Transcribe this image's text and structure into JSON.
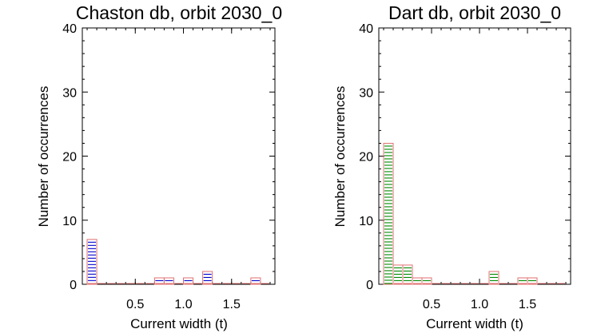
{
  "chart_data": [
    {
      "type": "bar",
      "title": "Chaston db, orbit 2030_0",
      "xlabel": "Current width (t)",
      "ylabel": "Number of occurrences",
      "xlim": [
        -0.05,
        1.95
      ],
      "ylim": [
        0,
        40
      ],
      "yticks": [
        "0",
        "10",
        "20",
        "30",
        "40"
      ],
      "xticks": [
        "0.5",
        "1.0",
        "1.5"
      ],
      "bin_width": 0.1,
      "bin_starts": [
        0.0,
        0.7,
        0.8,
        1.0,
        1.2,
        1.7
      ],
      "values": [
        7,
        1,
        1,
        1,
        2,
        1
      ],
      "hatch_color": "#0000cc",
      "edge_color": "#e07070"
    },
    {
      "type": "bar",
      "title": "Dart db, orbit 2030_0",
      "xlabel": "Current width (t)",
      "ylabel": "Number of occurrences",
      "xlim": [
        -0.05,
        1.95
      ],
      "ylim": [
        0,
        40
      ],
      "yticks": [
        "0",
        "10",
        "20",
        "30",
        "40"
      ],
      "xticks": [
        "0.5",
        "1.0",
        "1.5"
      ],
      "bin_width": 0.1,
      "bin_starts": [
        0.0,
        0.1,
        0.2,
        0.3,
        0.4,
        1.1,
        1.4,
        1.5
      ],
      "values": [
        22,
        3,
        3,
        1,
        1,
        2,
        1,
        1
      ],
      "hatch_color": "#008800",
      "edge_color": "#e07070"
    }
  ]
}
